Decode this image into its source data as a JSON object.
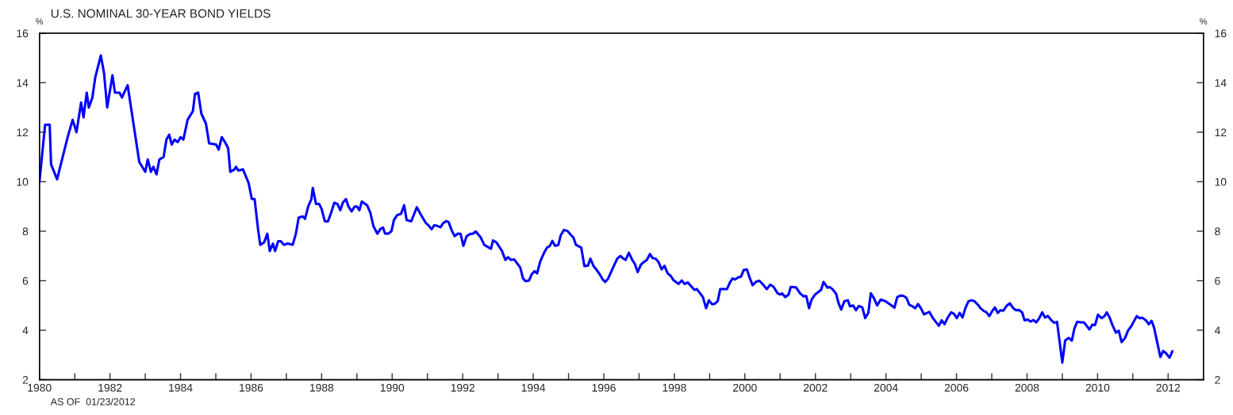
{
  "chart_data": {
    "type": "line",
    "title": "U.S. NOMINAL 30-YEAR BOND YIELDS",
    "ylabel": "%",
    "y2label": "%",
    "annotations": [
      "AS OF  01/23/2012"
    ],
    "xlim": [
      1980,
      2013
    ],
    "xticks": [
      {
        "value": 1980,
        "label": "1980"
      },
      {
        "value": 1981,
        "label": null
      },
      {
        "value": 1982,
        "label": "1982"
      },
      {
        "value": 1983,
        "label": null
      },
      {
        "value": 1984,
        "label": "1984"
      },
      {
        "value": 1985,
        "label": null
      },
      {
        "value": 1986,
        "label": "1986"
      },
      {
        "value": 1987,
        "label": null
      },
      {
        "value": 1988,
        "label": "1988"
      },
      {
        "value": 1989,
        "label": null
      },
      {
        "value": 1990,
        "label": "1990"
      },
      {
        "value": 1991,
        "label": null
      },
      {
        "value": 1992,
        "label": "1992"
      },
      {
        "value": 1993,
        "label": null
      },
      {
        "value": 1994,
        "label": "1994"
      },
      {
        "value": 1995,
        "label": null
      },
      {
        "value": 1996,
        "label": "1996"
      },
      {
        "value": 1997,
        "label": null
      },
      {
        "value": 1998,
        "label": "1998"
      },
      {
        "value": 1999,
        "label": null
      },
      {
        "value": 2000,
        "label": "2000"
      },
      {
        "value": 2001,
        "label": null
      },
      {
        "value": 2002,
        "label": "2002"
      },
      {
        "value": 2003,
        "label": null
      },
      {
        "value": 2004,
        "label": "2004"
      },
      {
        "value": 2005,
        "label": null
      },
      {
        "value": 2006,
        "label": "2006"
      },
      {
        "value": 2007,
        "label": null
      },
      {
        "value": 2008,
        "label": "2008"
      },
      {
        "value": 2009,
        "label": null
      },
      {
        "value": 2010,
        "label": "2010"
      },
      {
        "value": 2011,
        "label": null
      },
      {
        "value": 2012,
        "label": "2012"
      }
    ],
    "ylim": [
      2,
      16
    ],
    "yticks": [
      2,
      4,
      6,
      8,
      10,
      12,
      14,
      16
    ],
    "y2lim": [
      2,
      16
    ],
    "y2ticks": [
      2,
      4,
      6,
      8,
      10,
      12,
      14,
      16
    ],
    "grid": false,
    "legend": false,
    "marker": "none",
    "line_style": "solid",
    "series": [
      {
        "color": "#0000ff",
        "x": [
          1980.0,
          1980.16,
          1980.29,
          1980.33,
          1980.5,
          1980.8,
          1980.94,
          1981.05,
          1981.18,
          1981.25,
          1981.34,
          1981.4,
          1981.5,
          1981.58,
          1981.74,
          1981.83,
          1981.92,
          1982.07,
          1982.14,
          1982.27,
          1982.34,
          1982.5,
          1982.83,
          1983.0,
          1983.07,
          1983.16,
          1983.23,
          1983.32,
          1983.4,
          1983.52,
          1983.6,
          1983.68,
          1983.75,
          1983.83,
          1983.92,
          1984.0,
          1984.08,
          1984.2,
          1984.35,
          1984.41,
          1984.5,
          1984.59,
          1984.72,
          1984.81,
          1985.01,
          1985.08,
          1985.17,
          1985.28,
          1985.35,
          1985.41,
          1985.53,
          1985.57,
          1985.64,
          1985.77,
          1985.93,
          1986.02,
          1986.1,
          1986.2,
          1986.26,
          1986.37,
          1986.46,
          1986.53,
          1986.62,
          1986.68,
          1986.77,
          1986.84,
          1986.93,
          1987.04,
          1987.18,
          1987.27,
          1987.35,
          1987.47,
          1987.53,
          1987.62,
          1987.71,
          1987.75,
          1987.84,
          1987.93,
          1988.0,
          1988.09,
          1988.18,
          1988.27,
          1988.36,
          1988.45,
          1988.53,
          1988.6,
          1988.69,
          1988.76,
          1988.85,
          1988.94,
          1989.0,
          1989.07,
          1989.14,
          1989.29,
          1989.38,
          1989.47,
          1989.58,
          1989.67,
          1989.74,
          1989.8,
          1989.89,
          1989.98,
          1990.05,
          1990.14,
          1990.25,
          1990.34,
          1990.41,
          1990.54,
          1990.7,
          1990.81,
          1990.95,
          1991.02,
          1991.12,
          1991.19,
          1991.27,
          1991.37,
          1991.44,
          1991.53,
          1991.6,
          1991.68,
          1991.77,
          1991.86,
          1991.94,
          1992.02,
          1992.11,
          1992.21,
          1992.29,
          1992.37,
          1992.51,
          1992.61,
          1992.8,
          1992.86,
          1992.96,
          1993.11,
          1993.21,
          1993.28,
          1993.37,
          1993.46,
          1993.63,
          1993.71,
          1993.78,
          1993.88,
          1993.96,
          1994.04,
          1994.11,
          1994.2,
          1994.3,
          1994.39,
          1994.47,
          1994.54,
          1994.62,
          1994.71,
          1994.78,
          1994.87,
          1994.97,
          1995.06,
          1995.14,
          1995.21,
          1995.36,
          1995.45,
          1995.55,
          1995.62,
          1995.71,
          1995.8,
          1995.89,
          1995.97,
          1996.04,
          1996.12,
          1996.23,
          1996.38,
          1996.47,
          1996.53,
          1996.62,
          1996.71,
          1996.8,
          1996.88,
          1996.96,
          1997.05,
          1997.14,
          1997.22,
          1997.31,
          1997.38,
          1997.47,
          1997.55,
          1997.64,
          1997.72,
          1997.81,
          1997.9,
          1997.97,
          1998.12,
          1998.21,
          1998.29,
          1998.38,
          1998.57,
          1998.64,
          1998.81,
          1998.9,
          1998.98,
          1999.07,
          1999.15,
          1999.23,
          1999.3,
          1999.49,
          1999.58,
          1999.65,
          1999.72,
          1999.82,
          1999.89,
          1999.97,
          2000.06,
          2000.13,
          2000.22,
          2000.32,
          2000.41,
          2000.5,
          2000.62,
          2000.72,
          2000.81,
          2000.93,
          2001.0,
          2001.05,
          2001.15,
          2001.24,
          2001.3,
          2001.45,
          2001.57,
          2001.66,
          2001.74,
          2001.82,
          2001.89,
          2001.99,
          2002.16,
          2002.23,
          2002.34,
          2002.41,
          2002.49,
          2002.59,
          2002.65,
          2002.73,
          2002.82,
          2002.92,
          2002.98,
          2003.07,
          2003.15,
          2003.23,
          2003.33,
          2003.41,
          2003.5,
          2003.57,
          2003.66,
          2003.75,
          2003.85,
          2003.99,
          2004.12,
          2004.24,
          2004.32,
          2004.41,
          2004.49,
          2004.58,
          2004.66,
          2004.75,
          2004.83,
          2004.91,
          2004.99,
          2005.08,
          2005.23,
          2005.33,
          2005.5,
          2005.58,
          2005.66,
          2005.75,
          2005.85,
          2005.93,
          2006.01,
          2006.09,
          2006.17,
          2006.25,
          2006.34,
          2006.43,
          2006.51,
          2006.6,
          2006.68,
          2006.78,
          2006.84,
          2006.93,
          2007.01,
          2007.09,
          2007.17,
          2007.25,
          2007.33,
          2007.43,
          2007.51,
          2007.61,
          2007.69,
          2007.78,
          2007.86,
          2007.93,
          2008.02,
          2008.1,
          2008.18,
          2008.26,
          2008.34,
          2008.43,
          2008.51,
          2008.59,
          2008.69,
          2008.77,
          2008.85,
          2009.0,
          2009.08,
          2009.18,
          2009.27,
          2009.34,
          2009.42,
          2009.52,
          2009.61,
          2009.69,
          2009.77,
          2009.85,
          2009.93,
          2010.01,
          2010.11,
          2010.19,
          2010.26,
          2010.34,
          2010.42,
          2010.52,
          2010.6,
          2010.68,
          2010.78,
          2010.86,
          2010.95,
          2011.11,
          2011.19,
          2011.27,
          2011.37,
          2011.45,
          2011.53,
          2011.6,
          2011.68,
          2011.78,
          2011.86,
          2011.94,
          2012.04,
          2012.12
        ],
        "values": [
          10.0,
          12.3,
          12.3,
          10.7,
          10.1,
          11.8,
          12.5,
          12.0,
          13.2,
          12.6,
          13.6,
          13.0,
          13.4,
          14.2,
          15.1,
          14.4,
          13.0,
          14.3,
          13.6,
          13.6,
          13.4,
          13.9,
          10.8,
          10.4,
          10.9,
          10.4,
          10.6,
          10.3,
          10.9,
          11.0,
          11.7,
          11.9,
          11.5,
          11.7,
          11.6,
          11.8,
          11.7,
          12.5,
          12.85,
          13.55,
          13.6,
          12.75,
          12.35,
          11.55,
          11.5,
          11.3,
          11.8,
          11.55,
          11.35,
          10.4,
          10.5,
          10.6,
          10.45,
          10.5,
          9.95,
          9.3,
          9.3,
          8.05,
          7.45,
          7.55,
          7.9,
          7.2,
          7.5,
          7.2,
          7.6,
          7.6,
          7.45,
          7.5,
          7.45,
          7.9,
          8.55,
          8.6,
          8.5,
          9.0,
          9.3,
          9.75,
          9.1,
          9.1,
          8.9,
          8.4,
          8.4,
          8.75,
          9.15,
          9.1,
          8.85,
          9.15,
          9.3,
          9.0,
          8.8,
          9.0,
          9.0,
          8.85,
          9.2,
          9.05,
          8.75,
          8.2,
          7.9,
          8.1,
          8.15,
          7.9,
          7.9,
          8.0,
          8.45,
          8.65,
          8.7,
          9.05,
          8.45,
          8.4,
          8.97,
          8.68,
          8.34,
          8.25,
          8.08,
          8.24,
          8.22,
          8.16,
          8.32,
          8.41,
          8.37,
          8.06,
          7.8,
          7.9,
          7.89,
          7.41,
          7.8,
          7.89,
          7.9,
          7.99,
          7.75,
          7.45,
          7.29,
          7.63,
          7.54,
          7.21,
          6.84,
          6.95,
          6.84,
          6.86,
          6.54,
          6.09,
          5.98,
          6.01,
          6.27,
          6.39,
          6.3,
          6.79,
          7.11,
          7.34,
          7.4,
          7.61,
          7.41,
          7.44,
          7.84,
          8.05,
          8.01,
          7.86,
          7.74,
          7.45,
          7.34,
          6.59,
          6.61,
          6.89,
          6.59,
          6.43,
          6.25,
          6.05,
          5.95,
          6.08,
          6.43,
          6.89,
          7.0,
          6.92,
          6.84,
          7.13,
          6.86,
          6.68,
          6.35,
          6.64,
          6.76,
          6.84,
          7.08,
          6.92,
          6.89,
          6.76,
          6.46,
          6.6,
          6.3,
          6.19,
          6.03,
          5.87,
          6.01,
          5.87,
          5.93,
          5.63,
          5.66,
          5.34,
          4.89,
          5.21,
          5.05,
          5.07,
          5.18,
          5.66,
          5.66,
          5.94,
          6.09,
          6.05,
          6.14,
          6.16,
          6.44,
          6.45,
          6.14,
          5.82,
          5.96,
          6.0,
          5.87,
          5.66,
          5.84,
          5.76,
          5.49,
          5.44,
          5.49,
          5.34,
          5.44,
          5.75,
          5.73,
          5.48,
          5.37,
          5.38,
          4.89,
          5.23,
          5.44,
          5.63,
          5.95,
          5.72,
          5.74,
          5.65,
          5.46,
          5.12,
          4.83,
          5.17,
          5.21,
          4.97,
          5.0,
          4.81,
          4.98,
          4.92,
          4.49,
          4.7,
          5.49,
          5.29,
          5.0,
          5.24,
          5.17,
          5.04,
          4.91,
          5.34,
          5.4,
          5.39,
          5.31,
          5.03,
          4.97,
          4.89,
          5.06,
          4.89,
          4.64,
          4.74,
          4.49,
          4.18,
          4.4,
          4.24,
          4.51,
          4.72,
          4.66,
          4.49,
          4.7,
          4.51,
          4.89,
          5.17,
          5.21,
          5.17,
          5.04,
          4.89,
          4.77,
          4.74,
          4.57,
          4.77,
          4.92,
          4.7,
          4.81,
          4.79,
          5.0,
          5.09,
          4.89,
          4.81,
          4.81,
          4.72,
          4.4,
          4.43,
          4.35,
          4.41,
          4.32,
          4.47,
          4.72,
          4.51,
          4.58,
          4.4,
          4.3,
          4.34,
          2.69,
          3.58,
          3.69,
          3.58,
          4.06,
          4.34,
          4.32,
          4.32,
          4.18,
          4.03,
          4.22,
          4.21,
          4.63,
          4.49,
          4.56,
          4.72,
          4.52,
          4.21,
          3.9,
          3.98,
          3.52,
          3.69,
          3.98,
          4.15,
          4.57,
          4.49,
          4.5,
          4.4,
          4.24,
          4.38,
          4.11,
          3.58,
          2.92,
          3.16,
          3.07,
          2.89,
          3.15
        ]
      }
    ]
  }
}
